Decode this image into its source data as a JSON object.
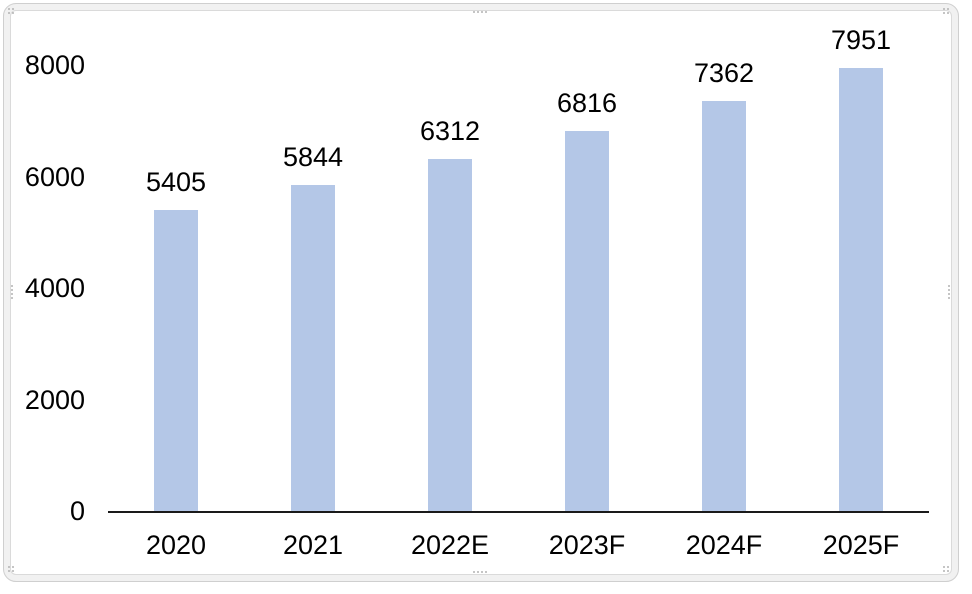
{
  "chart_data": {
    "type": "bar",
    "title": "",
    "categories": [
      "2020",
      "2021",
      "2022E",
      "2023F",
      "2024F",
      "2025F"
    ],
    "values": [
      5405,
      5844,
      6312,
      6816,
      7362,
      7951
    ],
    "data_labels": [
      "5405",
      "5844",
      "6312",
      "6816",
      "7362",
      "7951"
    ],
    "xlabel": "",
    "ylabel": "",
    "ylim": [
      0,
      8000
    ],
    "ytick_values": [
      0,
      2000,
      4000,
      6000,
      8000
    ],
    "ytick_labels": [
      "0",
      "2000",
      "4000",
      "6000",
      "8000"
    ],
    "grid": false,
    "legend": false,
    "bar_color": "#b4c7e7",
    "axis_line_color": "#1a1a1a",
    "text_color": "#000000"
  },
  "chart_frame": {
    "selected": true,
    "border_color": "#cfcfcf",
    "handle_color": "#b3b3b3"
  }
}
